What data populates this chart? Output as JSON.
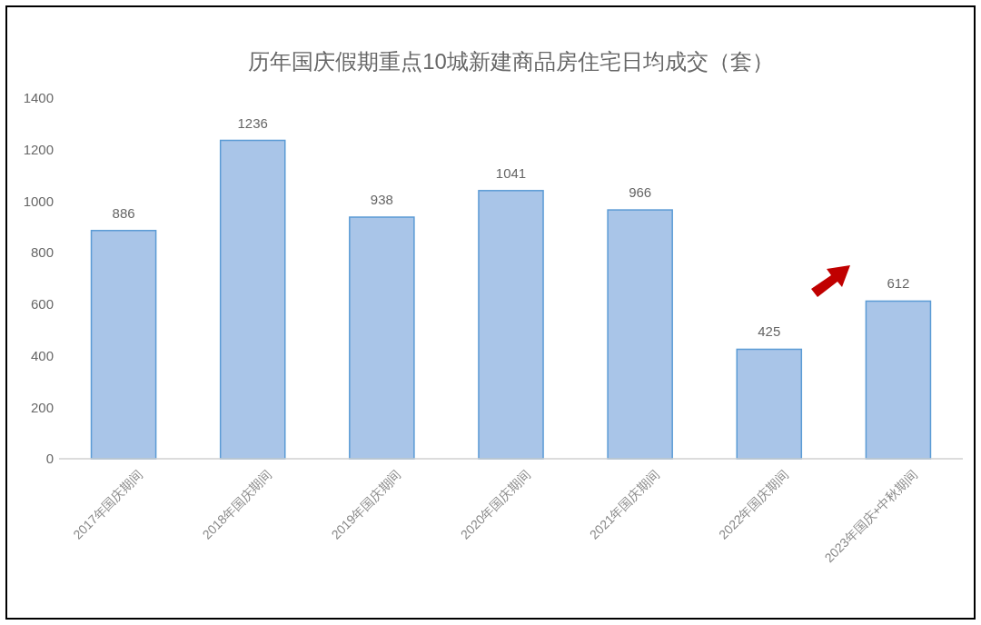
{
  "chart_data": {
    "type": "bar",
    "title": "历年国庆假期重点10城新建商品房住宅日均成交（套）",
    "categories": [
      "2017年国庆期间",
      "2018年国庆期间",
      "2019年国庆期间",
      "2020年国庆期间",
      "2021年国庆期间",
      "2022年国庆期间",
      "2023年国庆+中秋期间"
    ],
    "values": [
      886,
      1236,
      938,
      1041,
      966,
      425,
      612
    ],
    "color": "#a9c5e8",
    "ylim": [
      0,
      1400
    ],
    "yticks": [
      0,
      200,
      400,
      600,
      800,
      1000,
      1200,
      1400
    ],
    "data_labels": true,
    "grid": false
  }
}
